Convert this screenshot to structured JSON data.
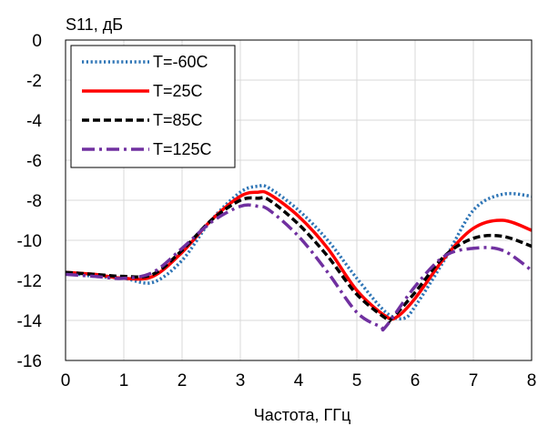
{
  "chart_data": {
    "type": "line",
    "title": "",
    "xlabel": "Частота, ГГц",
    "ylabel": "S11, дБ",
    "xlim": [
      0,
      8
    ],
    "ylim": [
      -16,
      0
    ],
    "xticks": [
      "0",
      "1",
      "2",
      "3",
      "4",
      "5",
      "6",
      "7",
      "8"
    ],
    "yticks": [
      "0",
      "-2",
      "-4",
      "-6",
      "-8",
      "-10",
      "-12",
      "-14",
      "-16"
    ],
    "grid": true,
    "legend_position": "top-left",
    "series": [
      {
        "name": "T=-60C",
        "color": "#2e75b6",
        "dash": "dotted",
        "x": [
          0,
          0.5,
          1,
          1.5,
          2,
          2.5,
          3,
          3.3,
          3.5,
          4,
          4.5,
          5,
          5.5,
          5.8,
          6,
          6.5,
          7,
          7.5,
          8
        ],
        "y": [
          -11.6,
          -11.8,
          -11.9,
          -12.1,
          -11.0,
          -9.0,
          -7.6,
          -7.3,
          -7.4,
          -8.5,
          -10.0,
          -11.9,
          -13.6,
          -13.9,
          -13.3,
          -11.0,
          -8.5,
          -7.7,
          -7.8
        ]
      },
      {
        "name": "T=25C",
        "color": "#ff0000",
        "dash": "solid",
        "x": [
          0,
          0.5,
          1,
          1.5,
          2,
          2.5,
          3,
          3.3,
          3.5,
          4,
          4.5,
          5,
          5.5,
          5.7,
          6,
          6.5,
          7,
          7.5,
          8
        ],
        "y": [
          -11.6,
          -11.7,
          -11.9,
          -11.8,
          -10.6,
          -9.0,
          -7.8,
          -7.6,
          -7.7,
          -8.8,
          -10.4,
          -12.5,
          -13.8,
          -13.8,
          -12.9,
          -10.9,
          -9.4,
          -9.0,
          -9.5
        ]
      },
      {
        "name": "T=85C",
        "color": "#000000",
        "dash": "dashed",
        "x": [
          0,
          0.5,
          1,
          1.5,
          2,
          2.5,
          3,
          3.3,
          3.5,
          4,
          4.5,
          5,
          5.5,
          5.6,
          6,
          6.5,
          7,
          7.5,
          8
        ],
        "y": [
          -11.6,
          -11.7,
          -11.8,
          -11.7,
          -10.5,
          -9.0,
          -8.0,
          -7.9,
          -8.0,
          -9.2,
          -10.8,
          -12.7,
          -13.9,
          -13.9,
          -12.6,
          -10.8,
          -9.9,
          -9.8,
          -10.3
        ]
      },
      {
        "name": "T=125C",
        "color": "#7030a0",
        "dash": "dashdot",
        "x": [
          0,
          0.5,
          1,
          1.5,
          2,
          2.5,
          3,
          3.3,
          3.5,
          4,
          4.5,
          5,
          5.4,
          5.5,
          6,
          6.5,
          7,
          7.5,
          8
        ],
        "y": [
          -11.7,
          -11.8,
          -11.9,
          -11.6,
          -10.4,
          -9.1,
          -8.3,
          -8.3,
          -8.5,
          -9.8,
          -11.6,
          -13.6,
          -14.3,
          -14.3,
          -12.3,
          -10.8,
          -10.4,
          -10.5,
          -11.5
        ]
      }
    ]
  }
}
